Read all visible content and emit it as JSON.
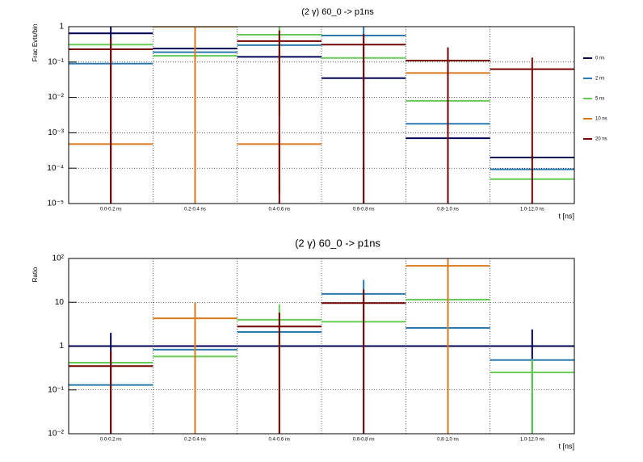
{
  "chart_data": [
    {
      "type": "errorbar_hist",
      "title": "(2 γ) 60_0 -> p1ns",
      "y_label": "Frac Evts/bin",
      "x_label": "t [ns]",
      "categories": [
        "0.0-0.2 ns",
        "0.2-0.4 ns",
        "0.4-0.6 ns",
        "0.6-0.8 ns",
        "0.8-1.0 ns",
        "1.0-12.0 ns"
      ],
      "log_y": true,
      "grid": true,
      "legend": "right",
      "ylim": [
        1e-05,
        1
      ],
      "yticks": [
        {
          "value": 1e-05,
          "label": "10⁻⁵"
        },
        {
          "value": 0.0001,
          "label": "10⁻⁴"
        },
        {
          "value": 0.001,
          "label": "10⁻³"
        },
        {
          "value": 0.01,
          "label": "10⁻²"
        },
        {
          "value": 0.1,
          "label": "10⁻¹"
        },
        1
      ],
      "series": [
        {
          "name": "0 ns",
          "color": "#000055",
          "values": [
            0.65,
            0.24,
            0.14,
            0.035,
            0.0007,
            0.0002
          ],
          "errors": [
            0.7,
            0.02,
            0.02,
            0.005,
            0.0001,
            3e-05
          ]
        },
        {
          "name": "2 ns",
          "color": "#2a7ab0",
          "values": [
            0.09,
            0.19,
            0.3,
            0.56,
            0.0018,
            9.3e-05
          ],
          "errors": [
            0.005,
            0.01,
            0.02,
            0.6,
            0.0002,
            1e-05
          ]
        },
        {
          "name": "5 ns",
          "color": "#66cc55",
          "values": [
            0.31,
            0.15,
            0.59,
            0.13,
            0.008,
            4.9e-05
          ],
          "errors": [
            0.02,
            0.01,
            0.587,
            0.01,
            0.0005,
            5e-06
          ]
        },
        {
          "name": "10 ns",
          "color": "#d97a1f",
          "values": [
            0.00048,
            1.0,
            0.00048,
            null,
            0.049,
            null
          ],
          "errors": [
            3e-05,
            1.0,
            0.00046,
            null,
            0.003,
            null
          ]
        },
        {
          "name": "20 ns",
          "color": "#770000",
          "values": [
            0.23,
            null,
            0.39,
            0.31,
            0.11,
            0.063
          ],
          "errors": [
            0.25,
            null,
            0.39,
            0.31,
            0.15,
            0.07
          ]
        }
      ]
    },
    {
      "type": "errorbar_hist",
      "title": "(2 γ) 60_0 -> p1ns",
      "y_label": "Ratio",
      "x_label": "t [ns]",
      "categories": [
        "0.0-0.2 ns",
        "0.2-0.4 ns",
        "0.4-0.6 ns",
        "0.6-0.8 ns",
        "0.8-1.0 ns",
        "1.0-12.0 ns"
      ],
      "log_y": true,
      "grid": true,
      "ylim": [
        0.01,
        100
      ],
      "yticks": [
        {
          "value": 0.01,
          "label": "10⁻²"
        },
        {
          "value": 0.1,
          "label": "10⁻¹"
        },
        1,
        10,
        {
          "value": 100,
          "label": "10²"
        }
      ],
      "series": [
        {
          "color": "#000055",
          "values": [
            1,
            1,
            1,
            1,
            1,
            1
          ],
          "errors": [
            1,
            0,
            0,
            0,
            0,
            1.4
          ]
        },
        {
          "color": "#2a7ab0",
          "values": [
            0.13,
            0.83,
            2.1,
            15.5,
            2.6,
            0.48
          ],
          "errors": [
            0.01,
            0.05,
            0.1,
            17,
            0.1,
            0.03
          ]
        },
        {
          "color": "#66cc55",
          "values": [
            0.42,
            0.58,
            4.0,
            3.6,
            11.5,
            0.25
          ],
          "errors": [
            0.03,
            0.03,
            5,
            0.2,
            0.5,
            0.25
          ]
        },
        {
          "color": "#d97a1f",
          "values": [
            null,
            4.3,
            null,
            null,
            68,
            null
          ],
          "errors": [
            null,
            5.5,
            null,
            null,
            80,
            null
          ]
        },
        {
          "color": "#770000",
          "values": [
            0.35,
            null,
            2.8,
            9.6,
            null,
            null
          ],
          "errors": [
            0.4,
            null,
            3,
            10,
            null,
            null
          ]
        }
      ]
    }
  ]
}
